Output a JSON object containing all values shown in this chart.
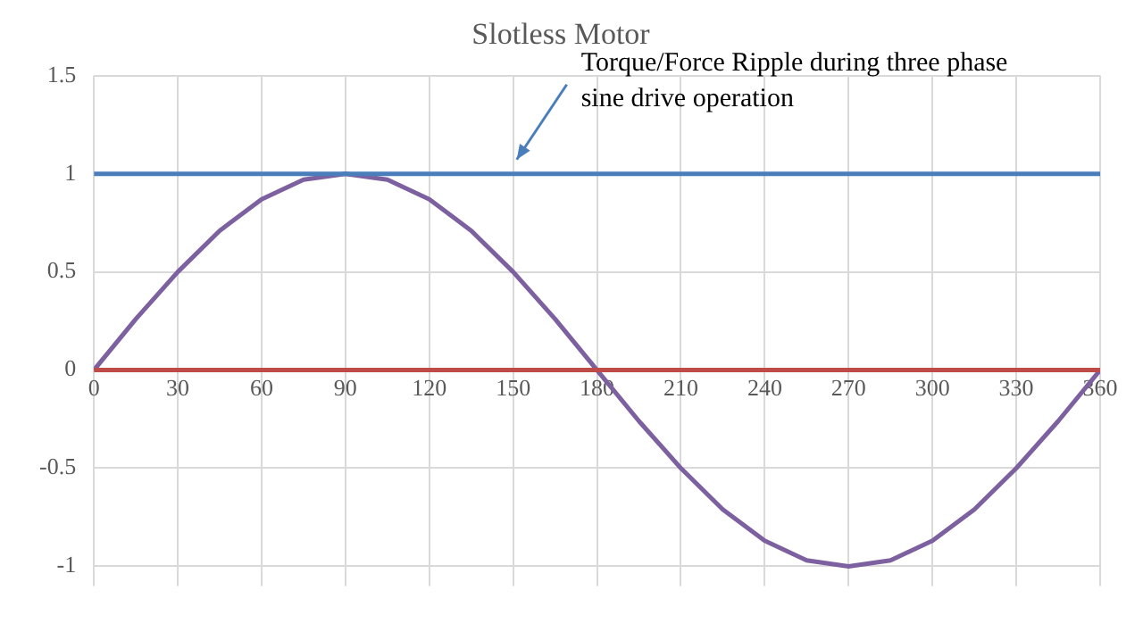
{
  "chart_data": {
    "type": "line",
    "title": "Slotless Motor",
    "x": [
      0,
      15,
      30,
      45,
      60,
      75,
      90,
      105,
      120,
      135,
      150,
      165,
      180,
      195,
      210,
      225,
      240,
      255,
      270,
      285,
      300,
      315,
      330,
      345,
      360
    ],
    "series": [
      {
        "color": "#4a7ebb",
        "values": [
          1,
          1,
          1,
          1,
          1,
          1,
          1,
          1,
          1,
          1,
          1,
          1,
          1,
          1,
          1,
          1,
          1,
          1,
          1,
          1,
          1,
          1,
          1,
          1,
          1
        ]
      },
      {
        "color": "#be4b48",
        "values": [
          0,
          0,
          0,
          0,
          0,
          0,
          0,
          0,
          0,
          0,
          0,
          0,
          0,
          0,
          0,
          0,
          0,
          0,
          0,
          0,
          0,
          0,
          0,
          0,
          0
        ]
      },
      {
        "color": "#7d60a0",
        "values": [
          0,
          0.26,
          0.5,
          0.71,
          0.87,
          0.97,
          1,
          0.97,
          0.87,
          0.71,
          0.5,
          0.26,
          0,
          -0.26,
          -0.5,
          -0.71,
          -0.87,
          -0.97,
          -1,
          -0.97,
          -0.87,
          -0.71,
          -0.5,
          -0.26,
          0
        ]
      }
    ],
    "xlim": [
      0,
      360
    ],
    "xticks": [
      0,
      30,
      60,
      90,
      120,
      150,
      180,
      210,
      240,
      270,
      300,
      330,
      360
    ],
    "ylim": [
      -1.1,
      1.5
    ],
    "yticks": [
      -1,
      -0.5,
      0,
      0.5,
      1,
      1.5
    ],
    "grid": true,
    "legend": false,
    "marker": "none",
    "line_style": "solid",
    "annotations": [
      {
        "text": "Torque/Force Ripple during three phase  sine drive operation",
        "x": 150,
        "y": 1
      }
    ]
  }
}
